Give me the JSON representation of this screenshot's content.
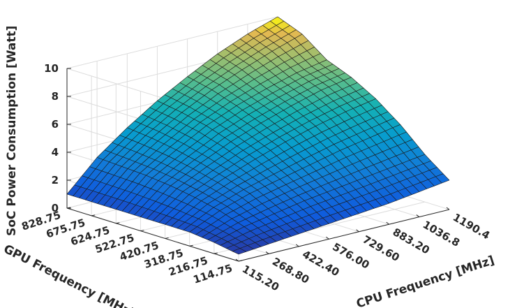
{
  "chart_data": {
    "type": "surface3d",
    "title": "",
    "xlabel": "CPU Frequency [MHz]",
    "ylabel": "GPU Frequency [MHz]",
    "zlabel": "SoC Power Consumption [Watt]",
    "x_ticks": [
      "115.20",
      "268.80",
      "422.40",
      "576.00",
      "729.60",
      "883.20",
      "1036.8",
      "1190.4"
    ],
    "y_ticks": [
      "114.75",
      "216.75",
      "318.75",
      "420.75",
      "522.75",
      "624.75",
      "675.75",
      "828.75"
    ],
    "z_ticks": [
      "0",
      "2",
      "4",
      "6",
      "8",
      "10"
    ],
    "zlim": [
      0,
      10
    ],
    "grid": true,
    "colormap": "parula",
    "cpu_freq_mhz": [
      115.2,
      268.8,
      422.4,
      576.0,
      729.6,
      883.2,
      1036.8,
      1190.4
    ],
    "gpu_freq_mhz": [
      114.75,
      216.75,
      318.75,
      420.75,
      522.75,
      624.75,
      675.75,
      828.75
    ],
    "power_watt": [
      [
        0.5,
        0.7,
        0.9,
        1.1,
        1.3,
        1.5,
        1.8,
        2.1
      ],
      [
        0.8,
        1.4,
        1.8,
        2.2,
        2.5,
        2.8,
        3.1,
        3.4
      ],
      [
        1.0,
        2.0,
        2.7,
        3.2,
        3.7,
        4.2,
        4.6,
        5.0
      ],
      [
        1.0,
        2.4,
        3.3,
        4.1,
        4.8,
        5.4,
        5.9,
        6.3
      ],
      [
        1.0,
        2.7,
        3.8,
        4.8,
        5.6,
        6.3,
        6.9,
        7.3
      ],
      [
        1.0,
        2.9,
        4.2,
        5.4,
        6.3,
        7.0,
        7.6,
        8.0
      ],
      [
        1.0,
        3.0,
        4.5,
        5.8,
        6.9,
        7.8,
        8.6,
        9.3
      ],
      [
        1.0,
        3.1,
        4.7,
        6.1,
        7.3,
        8.4,
        9.3,
        10.0
      ]
    ]
  }
}
